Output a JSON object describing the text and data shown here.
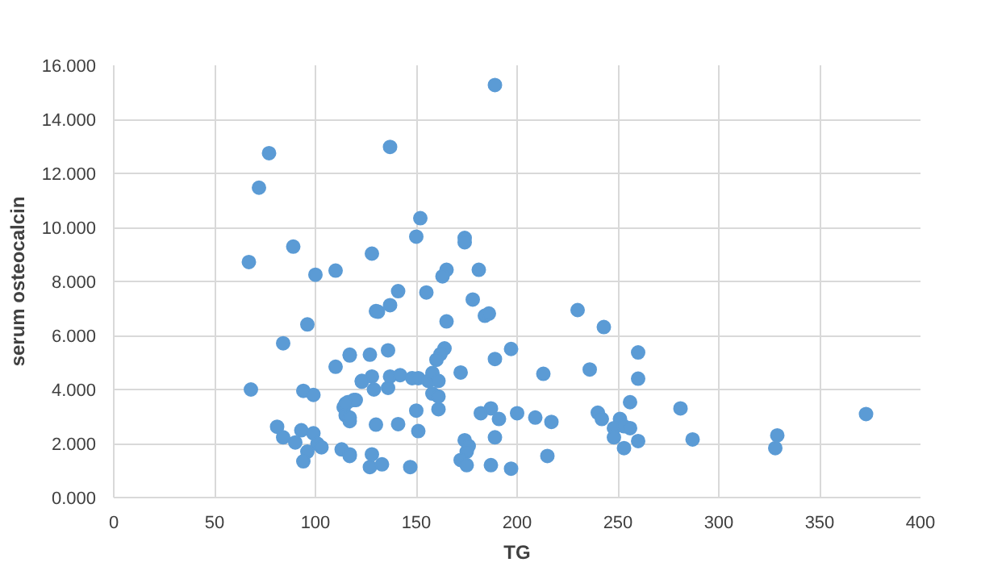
{
  "chart_data": {
    "type": "scatter",
    "xlabel": "TG",
    "ylabel": "serum osteocalcin",
    "marker": "circle",
    "grid": true,
    "xlim": [
      0,
      400
    ],
    "xticks": [
      0,
      50,
      100,
      150,
      200,
      250,
      300,
      350,
      400
    ],
    "ylim": [
      0,
      16
    ],
    "yticks": [
      {
        "value": 0,
        "label": "0.000"
      },
      {
        "value": 2,
        "label": "2.000"
      },
      {
        "value": 4,
        "label": "4.000"
      },
      {
        "value": 6,
        "label": "6.000"
      },
      {
        "value": 8,
        "label": "8.000"
      },
      {
        "value": 10,
        "label": "10.000"
      },
      {
        "value": 12,
        "label": "12.000"
      },
      {
        "value": 14,
        "label": "14.000"
      },
      {
        "value": 16,
        "label": "16.000"
      }
    ],
    "series": [
      {
        "color": "#5b9bd5",
        "x": [
          77,
          72,
          67,
          89,
          100,
          110,
          96,
          84,
          68,
          94,
          99,
          110,
          117,
          127,
          123,
          128,
          129,
          114,
          116,
          120,
          115,
          117,
          81,
          84,
          93,
          90,
          99,
          101,
          103,
          96,
          94,
          113,
          117,
          127,
          128,
          130,
          128,
          130,
          137,
          152,
          150,
          174,
          174,
          181,
          165,
          163,
          141,
          155,
          178,
          137,
          131,
          184,
          186,
          165,
          230,
          243,
          117,
          136,
          164,
          162,
          160,
          197,
          189,
          260,
          236,
          213,
          260,
          172,
          123,
          137,
          142,
          148,
          151,
          156,
          158,
          161,
          136,
          158,
          161,
          119,
          115,
          117,
          161,
          150,
          256,
          141,
          151,
          182,
          187,
          191,
          200,
          209,
          217,
          240,
          242,
          251,
          248,
          253,
          256,
          248,
          253,
          260,
          189,
          174,
          176,
          175,
          172,
          175,
          187,
          197,
          215,
          147,
          133,
          117,
          281,
          287,
          329,
          328,
          373,
          189
        ],
        "values": [
          12.75,
          11.47,
          8.72,
          9.29,
          8.25,
          8.4,
          6.41,
          5.71,
          4.0,
          3.95,
          3.8,
          4.84,
          5.29,
          5.29,
          4.29,
          4.48,
          4.0,
          3.35,
          3.53,
          3.61,
          3.04,
          2.83,
          2.62,
          2.23,
          2.49,
          2.04,
          2.38,
          1.99,
          1.86,
          1.7,
          1.34,
          1.78,
          1.6,
          1.13,
          1.6,
          2.7,
          9.03,
          6.9,
          12.98,
          10.34,
          9.66,
          9.61,
          9.45,
          8.43,
          8.43,
          8.19,
          7.64,
          7.59,
          7.33,
          7.12,
          6.88,
          6.73,
          6.81,
          6.52,
          6.94,
          6.31,
          5.26,
          5.45,
          5.52,
          5.31,
          5.1,
          5.5,
          5.13,
          5.37,
          4.74,
          4.58,
          4.4,
          4.63,
          4.32,
          4.48,
          4.53,
          4.42,
          4.42,
          4.32,
          4.61,
          4.32,
          4.06,
          3.85,
          3.74,
          3.61,
          3.48,
          2.96,
          3.27,
          3.22,
          3.53,
          2.72,
          2.46,
          3.12,
          3.3,
          2.91,
          3.12,
          2.96,
          2.8,
          3.14,
          2.91,
          2.91,
          2.57,
          2.64,
          2.57,
          2.23,
          1.83,
          2.09,
          2.23,
          2.12,
          1.91,
          1.7,
          1.39,
          1.2,
          1.2,
          1.07,
          1.54,
          1.13,
          1.23,
          1.54,
          3.3,
          2.15,
          2.3,
          1.83,
          3.09,
          15.27
        ]
      }
    ]
  }
}
